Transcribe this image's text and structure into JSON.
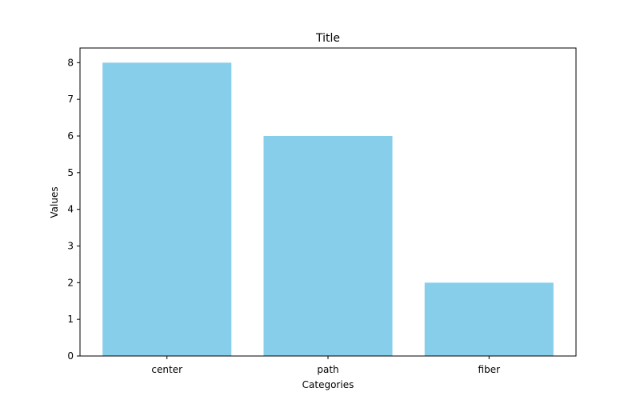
{
  "chart_data": {
    "type": "bar",
    "title": "Title",
    "xlabel": "Categories",
    "ylabel": "Values",
    "categories": [
      "center",
      "path",
      "fiber"
    ],
    "values": [
      8,
      6,
      2
    ],
    "ylim": [
      0,
      8.4
    ],
    "yticks": [
      0,
      1,
      2,
      3,
      4,
      5,
      6,
      7,
      8
    ],
    "bar_color": "#87CEEB",
    "grid": false,
    "legend": "none"
  }
}
